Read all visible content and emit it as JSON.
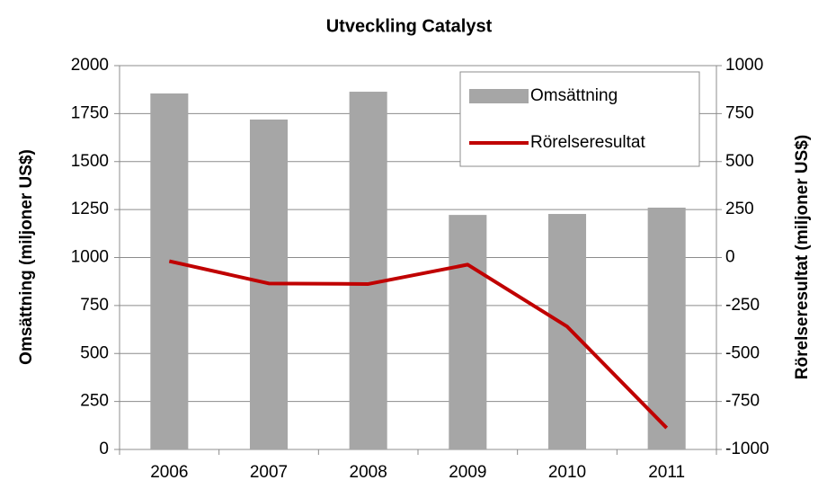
{
  "chart_data": {
    "type": "bar",
    "title": "Utveckling Catalyst",
    "ylabel": "Omsättning (miljoner US$)",
    "y2label": "Rörelseresultat (miljoner US$)",
    "categories": [
      "2006",
      "2007",
      "2008",
      "2009",
      "2010",
      "2011"
    ],
    "series": [
      {
        "name": "Omsättning",
        "type": "bar",
        "color": "#a6a6a6",
        "axis": "y",
        "values": [
          1855,
          1719,
          1864,
          1222,
          1227,
          1260
        ]
      },
      {
        "name": "Rörelseresultat",
        "type": "line",
        "color": "#c00000",
        "axis": "y2",
        "values": [
          -19,
          -135,
          -138,
          -37,
          -360,
          -888
        ]
      }
    ],
    "ylim": [
      0,
      2000
    ],
    "yticks": [
      0,
      250,
      500,
      750,
      1000,
      1250,
      1500,
      1750,
      2000
    ],
    "y2lim": [
      -1000,
      1000
    ],
    "y2ticks": [
      -1000,
      -750,
      -500,
      -250,
      0,
      250,
      500,
      750,
      1000
    ],
    "grid": true,
    "legend": "upper right"
  }
}
